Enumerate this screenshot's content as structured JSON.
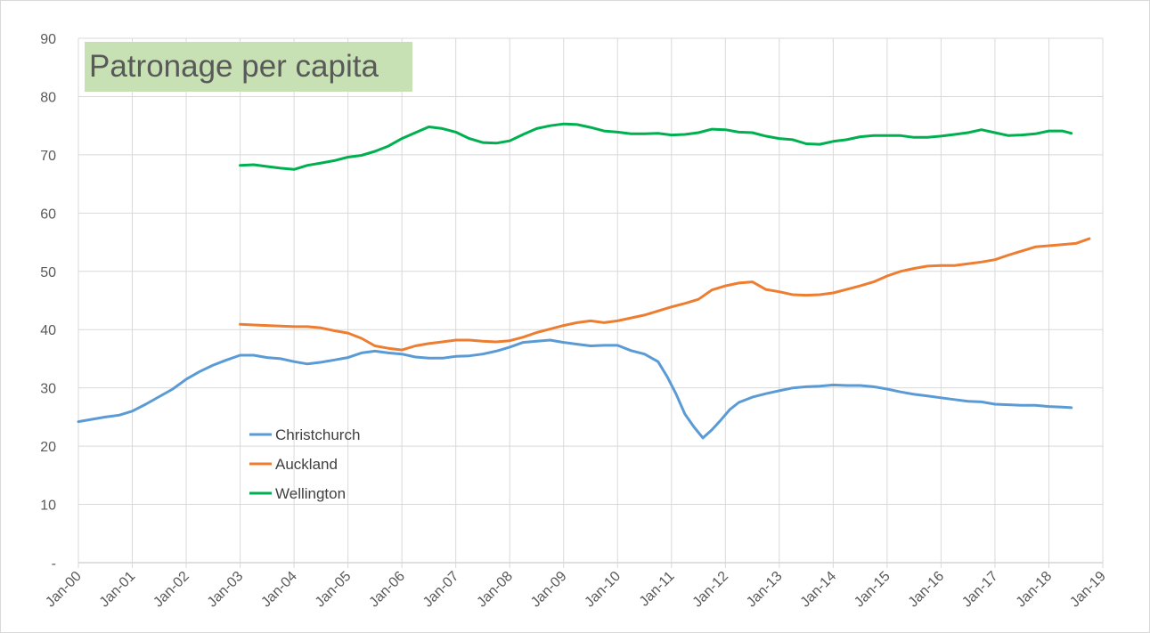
{
  "chart_data": {
    "type": "line",
    "title": "Patronage per capita",
    "xlabel": "",
    "ylabel": "",
    "ylim": [
      0,
      90
    ],
    "y_ticks": [
      0,
      10,
      20,
      30,
      40,
      50,
      60,
      70,
      80,
      90
    ],
    "y_tick_labels": [
      "-",
      "10",
      "20",
      "30",
      "40",
      "50",
      "60",
      "70",
      "80",
      "90"
    ],
    "x_range": [
      "2000-01",
      "2019-01"
    ],
    "x_tick_labels": [
      "Jan-00",
      "Jan-01",
      "Jan-02",
      "Jan-03",
      "Jan-04",
      "Jan-05",
      "Jan-06",
      "Jan-07",
      "Jan-08",
      "Jan-09",
      "Jan-10",
      "Jan-11",
      "Jan-12",
      "Jan-13",
      "Jan-14",
      "Jan-15",
      "Jan-16",
      "Jan-17",
      "Jan-18",
      "Jan-19"
    ],
    "grid": true,
    "legend_position": "left-middle",
    "series": [
      {
        "name": "Christchurch",
        "color": "#5b9bd5",
        "points": [
          [
            "2000-01",
            24.2
          ],
          [
            "2000-04",
            24.6
          ],
          [
            "2000-07",
            25.0
          ],
          [
            "2000-10",
            25.3
          ],
          [
            "2001-01",
            26.0
          ],
          [
            "2001-04",
            27.2
          ],
          [
            "2001-07",
            28.5
          ],
          [
            "2001-10",
            29.8
          ],
          [
            "2002-01",
            31.5
          ],
          [
            "2002-04",
            32.8
          ],
          [
            "2002-07",
            33.9
          ],
          [
            "2002-10",
            34.8
          ],
          [
            "2003-01",
            35.6
          ],
          [
            "2003-04",
            35.6
          ],
          [
            "2003-07",
            35.2
          ],
          [
            "2003-10",
            35.0
          ],
          [
            "2004-01",
            34.5
          ],
          [
            "2004-04",
            34.1
          ],
          [
            "2004-07",
            34.4
          ],
          [
            "2004-10",
            34.8
          ],
          [
            "2005-01",
            35.2
          ],
          [
            "2005-04",
            36.0
          ],
          [
            "2005-07",
            36.3
          ],
          [
            "2005-10",
            36.0
          ],
          [
            "2006-01",
            35.8
          ],
          [
            "2006-04",
            35.3
          ],
          [
            "2006-07",
            35.1
          ],
          [
            "2006-10",
            35.1
          ],
          [
            "2007-01",
            35.4
          ],
          [
            "2007-04",
            35.5
          ],
          [
            "2007-07",
            35.8
          ],
          [
            "2007-10",
            36.3
          ],
          [
            "2008-01",
            37.0
          ],
          [
            "2008-04",
            37.8
          ],
          [
            "2008-07",
            38.0
          ],
          [
            "2008-10",
            38.2
          ],
          [
            "2009-01",
            37.8
          ],
          [
            "2009-04",
            37.5
          ],
          [
            "2009-07",
            37.2
          ],
          [
            "2009-10",
            37.3
          ],
          [
            "2010-01",
            37.3
          ],
          [
            "2010-04",
            36.4
          ],
          [
            "2010-07",
            35.8
          ],
          [
            "2010-10",
            34.5
          ],
          [
            "2010-12",
            32.0
          ],
          [
            "2011-02",
            29.0
          ],
          [
            "2011-04",
            25.5
          ],
          [
            "2011-06",
            23.3
          ],
          [
            "2011-08",
            21.4
          ],
          [
            "2011-10",
            22.8
          ],
          [
            "2011-12",
            24.5
          ],
          [
            "2012-02",
            26.3
          ],
          [
            "2012-04",
            27.5
          ],
          [
            "2012-07",
            28.4
          ],
          [
            "2012-10",
            29.0
          ],
          [
            "2013-01",
            29.5
          ],
          [
            "2013-04",
            30.0
          ],
          [
            "2013-07",
            30.2
          ],
          [
            "2013-10",
            30.3
          ],
          [
            "2014-01",
            30.5
          ],
          [
            "2014-04",
            30.4
          ],
          [
            "2014-07",
            30.4
          ],
          [
            "2014-10",
            30.2
          ],
          [
            "2015-01",
            29.8
          ],
          [
            "2015-04",
            29.3
          ],
          [
            "2015-07",
            28.9
          ],
          [
            "2015-10",
            28.6
          ],
          [
            "2016-01",
            28.3
          ],
          [
            "2016-04",
            28.0
          ],
          [
            "2016-07",
            27.7
          ],
          [
            "2016-10",
            27.6
          ],
          [
            "2017-01",
            27.2
          ],
          [
            "2017-04",
            27.1
          ],
          [
            "2017-07",
            27.0
          ],
          [
            "2017-10",
            27.0
          ],
          [
            "2018-01",
            26.8
          ],
          [
            "2018-04",
            26.7
          ],
          [
            "2018-06",
            26.6
          ]
        ]
      },
      {
        "name": "Auckland",
        "color": "#ed7d31",
        "points": [
          [
            "2003-01",
            40.9
          ],
          [
            "2003-04",
            40.8
          ],
          [
            "2003-07",
            40.7
          ],
          [
            "2003-10",
            40.6
          ],
          [
            "2004-01",
            40.5
          ],
          [
            "2004-04",
            40.5
          ],
          [
            "2004-07",
            40.3
          ],
          [
            "2004-10",
            39.8
          ],
          [
            "2005-01",
            39.4
          ],
          [
            "2005-04",
            38.5
          ],
          [
            "2005-07",
            37.2
          ],
          [
            "2005-10",
            36.8
          ],
          [
            "2006-01",
            36.5
          ],
          [
            "2006-04",
            37.2
          ],
          [
            "2006-07",
            37.6
          ],
          [
            "2006-10",
            37.9
          ],
          [
            "2007-01",
            38.2
          ],
          [
            "2007-04",
            38.2
          ],
          [
            "2007-07",
            38.0
          ],
          [
            "2007-10",
            37.9
          ],
          [
            "2008-01",
            38.1
          ],
          [
            "2008-04",
            38.7
          ],
          [
            "2008-07",
            39.5
          ],
          [
            "2008-10",
            40.1
          ],
          [
            "2009-01",
            40.7
          ],
          [
            "2009-04",
            41.2
          ],
          [
            "2009-07",
            41.5
          ],
          [
            "2009-10",
            41.2
          ],
          [
            "2010-01",
            41.5
          ],
          [
            "2010-04",
            42.0
          ],
          [
            "2010-07",
            42.5
          ],
          [
            "2010-10",
            43.2
          ],
          [
            "2011-01",
            43.9
          ],
          [
            "2011-04",
            44.5
          ],
          [
            "2011-07",
            45.2
          ],
          [
            "2011-10",
            46.8
          ],
          [
            "2012-01",
            47.5
          ],
          [
            "2012-04",
            48.0
          ],
          [
            "2012-07",
            48.2
          ],
          [
            "2012-10",
            46.9
          ],
          [
            "2013-01",
            46.5
          ],
          [
            "2013-04",
            46.0
          ],
          [
            "2013-07",
            45.9
          ],
          [
            "2013-10",
            46.0
          ],
          [
            "2014-01",
            46.3
          ],
          [
            "2014-04",
            46.9
          ],
          [
            "2014-07",
            47.5
          ],
          [
            "2014-10",
            48.2
          ],
          [
            "2015-01",
            49.2
          ],
          [
            "2015-04",
            50.0
          ],
          [
            "2015-07",
            50.5
          ],
          [
            "2015-10",
            50.9
          ],
          [
            "2016-01",
            51.0
          ],
          [
            "2016-04",
            51.0
          ],
          [
            "2016-07",
            51.3
          ],
          [
            "2016-10",
            51.6
          ],
          [
            "2017-01",
            52.0
          ],
          [
            "2017-04",
            52.8
          ],
          [
            "2017-07",
            53.5
          ],
          [
            "2017-10",
            54.2
          ],
          [
            "2018-01",
            54.4
          ],
          [
            "2018-04",
            54.6
          ],
          [
            "2018-07",
            54.8
          ],
          [
            "2018-10",
            55.6
          ]
        ]
      },
      {
        "name": "Wellington",
        "color": "#00b050",
        "points": [
          [
            "2003-01",
            68.2
          ],
          [
            "2003-04",
            68.3
          ],
          [
            "2003-07",
            68.0
          ],
          [
            "2003-10",
            67.7
          ],
          [
            "2004-01",
            67.5
          ],
          [
            "2004-04",
            68.2
          ],
          [
            "2004-07",
            68.6
          ],
          [
            "2004-10",
            69.0
          ],
          [
            "2005-01",
            69.6
          ],
          [
            "2005-04",
            69.9
          ],
          [
            "2005-07",
            70.6
          ],
          [
            "2005-10",
            71.5
          ],
          [
            "2006-01",
            72.8
          ],
          [
            "2006-04",
            73.8
          ],
          [
            "2006-07",
            74.8
          ],
          [
            "2006-10",
            74.5
          ],
          [
            "2007-01",
            73.9
          ],
          [
            "2007-04",
            72.8
          ],
          [
            "2007-07",
            72.1
          ],
          [
            "2007-10",
            72.0
          ],
          [
            "2008-01",
            72.4
          ],
          [
            "2008-04",
            73.5
          ],
          [
            "2008-07",
            74.5
          ],
          [
            "2008-10",
            75.0
          ],
          [
            "2009-01",
            75.3
          ],
          [
            "2009-04",
            75.2
          ],
          [
            "2009-07",
            74.7
          ],
          [
            "2009-10",
            74.1
          ],
          [
            "2010-01",
            73.9
          ],
          [
            "2010-04",
            73.6
          ],
          [
            "2010-07",
            73.6
          ],
          [
            "2010-10",
            73.7
          ],
          [
            "2011-01",
            73.4
          ],
          [
            "2011-04",
            73.5
          ],
          [
            "2011-07",
            73.8
          ],
          [
            "2011-10",
            74.4
          ],
          [
            "2012-01",
            74.3
          ],
          [
            "2012-04",
            73.9
          ],
          [
            "2012-07",
            73.8
          ],
          [
            "2012-10",
            73.2
          ],
          [
            "2013-01",
            72.8
          ],
          [
            "2013-04",
            72.6
          ],
          [
            "2013-07",
            71.9
          ],
          [
            "2013-10",
            71.8
          ],
          [
            "2014-01",
            72.3
          ],
          [
            "2014-04",
            72.6
          ],
          [
            "2014-07",
            73.1
          ],
          [
            "2014-10",
            73.3
          ],
          [
            "2015-01",
            73.3
          ],
          [
            "2015-04",
            73.3
          ],
          [
            "2015-07",
            73.0
          ],
          [
            "2015-10",
            73.0
          ],
          [
            "2016-01",
            73.2
          ],
          [
            "2016-04",
            73.5
          ],
          [
            "2016-07",
            73.8
          ],
          [
            "2016-10",
            74.3
          ],
          [
            "2017-01",
            73.8
          ],
          [
            "2017-04",
            73.3
          ],
          [
            "2017-07",
            73.4
          ],
          [
            "2017-10",
            73.6
          ],
          [
            "2018-01",
            74.1
          ],
          [
            "2018-04",
            74.1
          ],
          [
            "2018-06",
            73.7
          ]
        ]
      }
    ]
  }
}
